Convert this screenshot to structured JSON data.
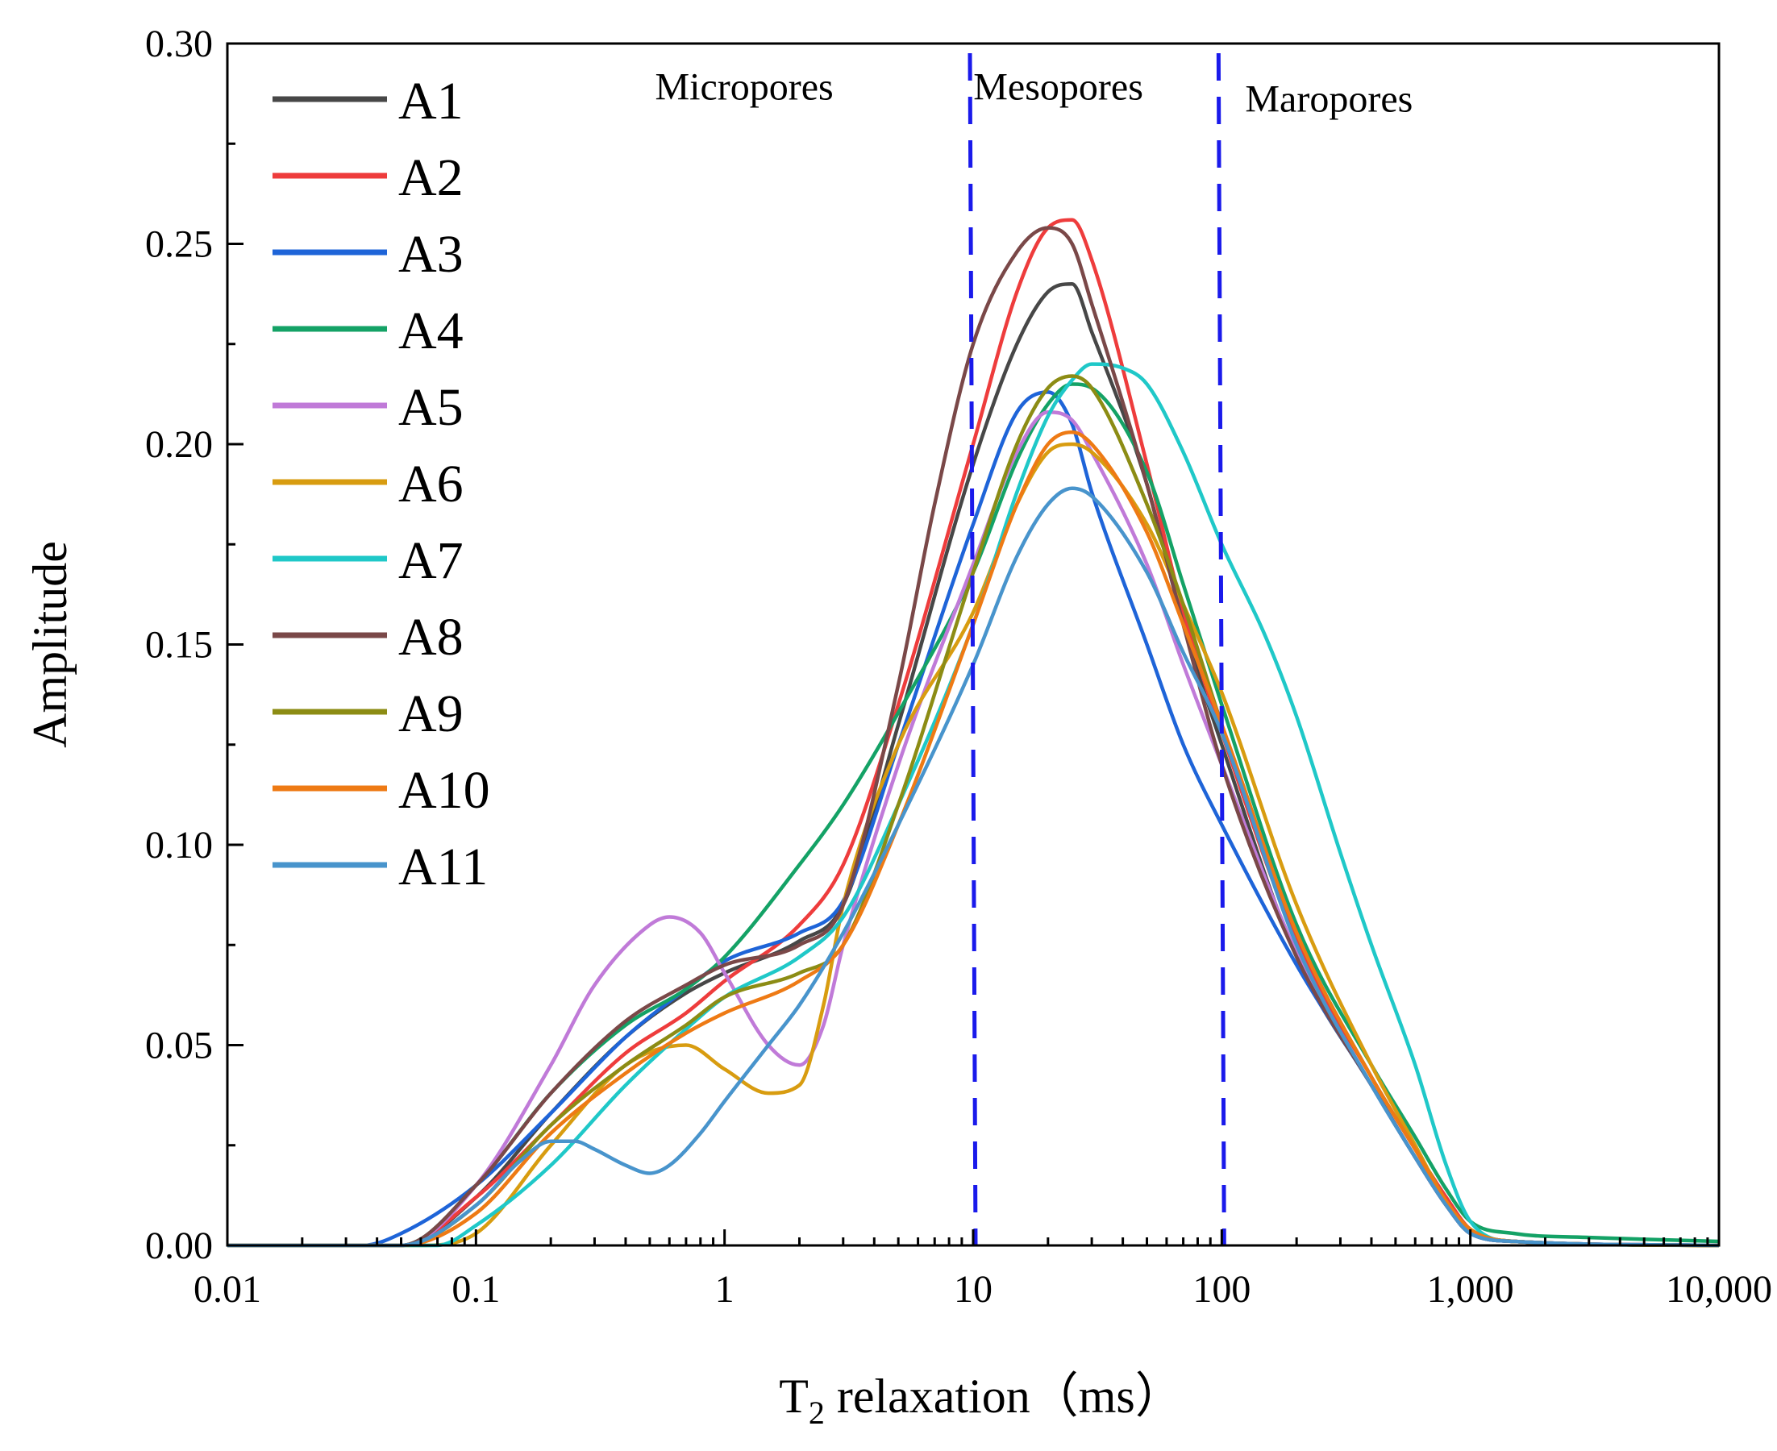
{
  "chart_data": {
    "type": "line",
    "xscale": "log",
    "xlabel": {
      "main": "T",
      "sub": "2",
      "rest": " relaxation（ms）"
    },
    "ylabel": "Amplitude",
    "xlim": [
      0.01,
      10000
    ],
    "ylim": [
      0,
      0.3
    ],
    "xticks": [
      {
        "value": 0.01,
        "label": "0.01"
      },
      {
        "value": 0.1,
        "label": "0.1"
      },
      {
        "value": 1,
        "label": "1"
      },
      {
        "value": 10,
        "label": "10"
      },
      {
        "value": 100,
        "label": "100"
      },
      {
        "value": 1000,
        "label": "1,000"
      },
      {
        "value": 10000,
        "label": "10,000"
      }
    ],
    "yticks": [
      {
        "value": 0,
        "label": "0.00"
      },
      {
        "value": 0.05,
        "label": "0.05"
      },
      {
        "value": 0.1,
        "label": "0.10"
      },
      {
        "value": 0.15,
        "label": "0.15"
      },
      {
        "value": 0.2,
        "label": "0.20"
      },
      {
        "value": 0.25,
        "label": "0.25"
      },
      {
        "value": 0.3,
        "label": "0.30"
      }
    ],
    "grid": false,
    "legend_position": "top-left",
    "boundaries": [
      {
        "value": 10,
        "color": "#1a1aeb"
      },
      {
        "value": 100,
        "color": "#1a1aeb"
      }
    ],
    "regions": [
      {
        "label": "Micropores",
        "x": 1.2,
        "y": 0.286
      },
      {
        "label": "Mesopores",
        "x": 22,
        "y": 0.286
      },
      {
        "label": "Maropores",
        "x": 270,
        "y": 0.283
      }
    ],
    "series": [
      {
        "name": "A1",
        "color": "#474747",
        "x": [
          0.01,
          0.05,
          0.1,
          0.2,
          0.4,
          0.7,
          1,
          2,
          3,
          5,
          10,
          15,
          20,
          25,
          30,
          50,
          70,
          100,
          200,
          400,
          600,
          800,
          1000,
          1500,
          10000
        ],
        "y": [
          0,
          0,
          0.012,
          0.033,
          0.052,
          0.063,
          0.068,
          0.076,
          0.085,
          0.13,
          0.195,
          0.225,
          0.238,
          0.24,
          0.228,
          0.19,
          0.155,
          0.125,
          0.072,
          0.04,
          0.022,
          0.01,
          0.003,
          0.001,
          0
        ]
      },
      {
        "name": "A2",
        "color": "#ee3c3c",
        "x": [
          0.01,
          0.05,
          0.1,
          0.2,
          0.4,
          0.7,
          1,
          2,
          3,
          5,
          10,
          15,
          20,
          25,
          30,
          50,
          70,
          100,
          200,
          400,
          600,
          800,
          1000,
          1500,
          10000
        ],
        "y": [
          0,
          0,
          0.012,
          0.03,
          0.048,
          0.058,
          0.066,
          0.08,
          0.095,
          0.135,
          0.2,
          0.238,
          0.254,
          0.256,
          0.246,
          0.195,
          0.158,
          0.128,
          0.076,
          0.042,
          0.024,
          0.012,
          0.004,
          0.001,
          0
        ]
      },
      {
        "name": "A3",
        "color": "#1e64d8",
        "x": [
          0.01,
          0.035,
          0.05,
          0.1,
          0.2,
          0.4,
          0.7,
          1,
          2,
          3,
          5,
          10,
          15,
          20,
          25,
          30,
          50,
          70,
          100,
          200,
          400,
          600,
          800,
          1000,
          1500,
          10000
        ],
        "y": [
          0,
          0,
          0.003,
          0.015,
          0.033,
          0.052,
          0.064,
          0.071,
          0.078,
          0.086,
          0.125,
          0.18,
          0.208,
          0.213,
          0.205,
          0.188,
          0.15,
          0.125,
          0.105,
          0.07,
          0.04,
          0.022,
          0.01,
          0.003,
          0.001,
          0
        ]
      },
      {
        "name": "A4",
        "color": "#14a266",
        "x": [
          0.01,
          0.05,
          0.1,
          0.2,
          0.4,
          0.7,
          1,
          2,
          3,
          5,
          10,
          15,
          20,
          25,
          30,
          50,
          70,
          100,
          200,
          400,
          600,
          800,
          1000,
          1500,
          3000,
          10000
        ],
        "y": [
          0,
          0,
          0.015,
          0.038,
          0.055,
          0.064,
          0.072,
          0.095,
          0.11,
          0.133,
          0.168,
          0.196,
          0.21,
          0.215,
          0.214,
          0.193,
          0.165,
          0.135,
          0.08,
          0.045,
          0.027,
          0.014,
          0.006,
          0.003,
          0.002,
          0.001
        ]
      },
      {
        "name": "A5",
        "color": "#c07ad8",
        "x": [
          0.01,
          0.05,
          0.1,
          0.2,
          0.3,
          0.5,
          0.6,
          0.8,
          1,
          1.5,
          2,
          2.5,
          3,
          5,
          10,
          15,
          20,
          25,
          30,
          50,
          70,
          100,
          200,
          400,
          600,
          800,
          1000,
          1500,
          10000
        ],
        "y": [
          0,
          0,
          0.015,
          0.045,
          0.065,
          0.08,
          0.082,
          0.078,
          0.068,
          0.05,
          0.045,
          0.055,
          0.075,
          0.12,
          0.17,
          0.198,
          0.208,
          0.206,
          0.198,
          0.17,
          0.145,
          0.12,
          0.073,
          0.04,
          0.022,
          0.01,
          0.003,
          0.001,
          0
        ]
      },
      {
        "name": "A6",
        "color": "#d89c10",
        "x": [
          0.01,
          0.06,
          0.1,
          0.2,
          0.4,
          0.7,
          1,
          1.5,
          2,
          2.5,
          3,
          5,
          10,
          15,
          20,
          25,
          30,
          50,
          70,
          100,
          200,
          400,
          600,
          800,
          1000,
          1500,
          10000
        ],
        "y": [
          0,
          0,
          0.003,
          0.025,
          0.045,
          0.05,
          0.044,
          0.038,
          0.04,
          0.06,
          0.085,
          0.125,
          0.158,
          0.185,
          0.198,
          0.2,
          0.198,
          0.18,
          0.16,
          0.138,
          0.085,
          0.045,
          0.025,
          0.011,
          0.004,
          0.001,
          0
        ]
      },
      {
        "name": "A7",
        "color": "#1fc8c8",
        "x": [
          0.01,
          0.07,
          0.1,
          0.2,
          0.4,
          0.7,
          1,
          2,
          3,
          5,
          10,
          15,
          20,
          25,
          30,
          40,
          50,
          70,
          100,
          150,
          200,
          300,
          400,
          600,
          800,
          1000,
          1500,
          10000
        ],
        "y": [
          0,
          0,
          0.005,
          0.02,
          0.04,
          0.054,
          0.062,
          0.072,
          0.082,
          0.11,
          0.155,
          0.188,
          0.207,
          0.216,
          0.22,
          0.219,
          0.215,
          0.198,
          0.175,
          0.152,
          0.132,
          0.098,
          0.075,
          0.045,
          0.02,
          0.006,
          0.001,
          0
        ]
      },
      {
        "name": "A8",
        "color": "#7a4848",
        "x": [
          0.01,
          0.05,
          0.1,
          0.2,
          0.4,
          0.7,
          1,
          2,
          3,
          5,
          7,
          10,
          15,
          20,
          25,
          30,
          50,
          70,
          100,
          200,
          400,
          600,
          800,
          1000,
          1500,
          10000
        ],
        "y": [
          0,
          0,
          0.015,
          0.038,
          0.056,
          0.065,
          0.07,
          0.075,
          0.085,
          0.14,
          0.185,
          0.225,
          0.248,
          0.254,
          0.25,
          0.235,
          0.19,
          0.155,
          0.12,
          0.072,
          0.04,
          0.022,
          0.01,
          0.003,
          0.001,
          0
        ]
      },
      {
        "name": "A9",
        "color": "#8c8c14",
        "x": [
          0.01,
          0.05,
          0.1,
          0.2,
          0.4,
          0.7,
          1,
          2,
          3,
          5,
          10,
          15,
          20,
          25,
          30,
          50,
          70,
          100,
          200,
          400,
          600,
          800,
          1000,
          1500,
          10000
        ],
        "y": [
          0,
          0,
          0.01,
          0.03,
          0.045,
          0.055,
          0.062,
          0.068,
          0.075,
          0.11,
          0.168,
          0.2,
          0.214,
          0.217,
          0.214,
          0.185,
          0.16,
          0.13,
          0.078,
          0.042,
          0.024,
          0.011,
          0.004,
          0.001,
          0
        ]
      },
      {
        "name": "A10",
        "color": "#ee7a14",
        "x": [
          0.01,
          0.05,
          0.1,
          0.2,
          0.4,
          0.7,
          1,
          2,
          3,
          5,
          10,
          15,
          20,
          25,
          30,
          50,
          70,
          100,
          200,
          400,
          600,
          800,
          1000,
          1500,
          10000
        ],
        "y": [
          0,
          0,
          0.008,
          0.028,
          0.043,
          0.053,
          0.058,
          0.066,
          0.075,
          0.105,
          0.155,
          0.185,
          0.2,
          0.203,
          0.2,
          0.178,
          0.155,
          0.13,
          0.078,
          0.042,
          0.024,
          0.011,
          0.004,
          0.001,
          0
        ]
      },
      {
        "name": "A11",
        "color": "#4894cc",
        "x": [
          0.01,
          0.05,
          0.1,
          0.15,
          0.2,
          0.25,
          0.3,
          0.4,
          0.5,
          0.6,
          0.8,
          1,
          1.5,
          2,
          3,
          5,
          10,
          15,
          20,
          25,
          30,
          50,
          70,
          100,
          200,
          400,
          600,
          800,
          1000,
          1500,
          10000
        ],
        "y": [
          0,
          0,
          0.01,
          0.021,
          0.026,
          0.026,
          0.024,
          0.02,
          0.018,
          0.02,
          0.028,
          0.036,
          0.05,
          0.06,
          0.078,
          0.105,
          0.145,
          0.172,
          0.185,
          0.189,
          0.187,
          0.168,
          0.148,
          0.128,
          0.075,
          0.04,
          0.022,
          0.01,
          0.003,
          0.001,
          0
        ]
      }
    ]
  }
}
